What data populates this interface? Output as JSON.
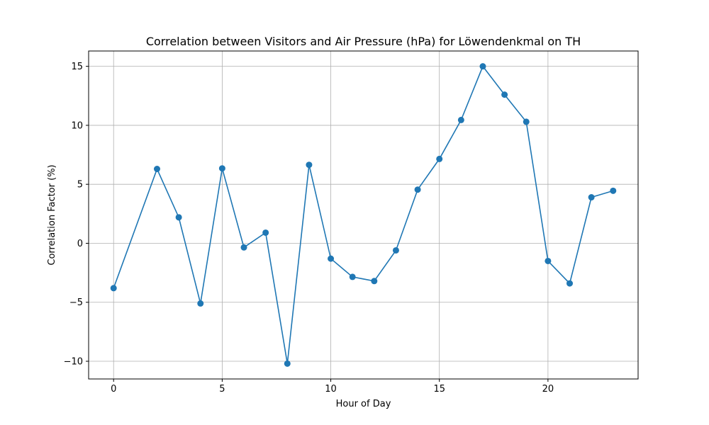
{
  "chart_data": {
    "type": "line",
    "title": "Correlation between Visitors and Air Pressure (hPa) for Löwendenkmal on TH",
    "xlabel": "Hour of Day",
    "ylabel": "Correlation Factor (%)",
    "xlim": [
      -1.15,
      24.15
    ],
    "ylim": [
      -11.5,
      16.3
    ],
    "xticks": [
      0,
      5,
      10,
      15,
      20
    ],
    "xtick_labels": [
      "0",
      "5",
      "10",
      "15",
      "20"
    ],
    "yticks": [
      -10,
      -5,
      0,
      5,
      10,
      15
    ],
    "ytick_labels": [
      "−10",
      "−5",
      "0",
      "5",
      "10",
      "15"
    ],
    "grid": true,
    "legend": "none",
    "series": [
      {
        "color": "#1f77b4",
        "marker": "circle",
        "x": [
          0,
          2,
          3,
          4,
          5,
          6,
          7,
          8,
          9,
          10,
          11,
          12,
          13,
          14,
          15,
          16,
          17,
          18,
          19,
          20,
          21,
          22,
          23
        ],
        "y": [
          -3.8,
          6.3,
          2.2,
          -5.1,
          6.35,
          -0.35,
          0.9,
          -10.2,
          6.65,
          -1.3,
          -2.85,
          -3.2,
          -0.6,
          4.55,
          7.15,
          10.45,
          15.0,
          12.6,
          10.3,
          -1.5,
          -3.4,
          3.9,
          4.45
        ]
      }
    ]
  }
}
